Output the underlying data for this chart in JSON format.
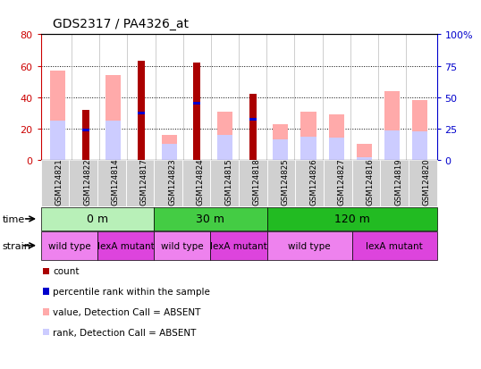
{
  "title": "GDS2317 / PA4326_at",
  "samples": [
    "GSM124821",
    "GSM124822",
    "GSM124814",
    "GSM124817",
    "GSM124823",
    "GSM124824",
    "GSM124815",
    "GSM124818",
    "GSM124825",
    "GSM124826",
    "GSM124827",
    "GSM124816",
    "GSM124819",
    "GSM124820"
  ],
  "count_values": [
    0,
    32,
    0,
    63,
    0,
    62,
    0,
    42,
    0,
    0,
    0,
    0,
    0,
    0
  ],
  "percentile_rank": [
    0,
    19,
    0,
    30,
    0,
    36,
    0,
    26,
    0,
    0,
    0,
    0,
    0,
    0
  ],
  "pink_bar_values": [
    57,
    0,
    54,
    0,
    16,
    0,
    31,
    0,
    23,
    31,
    29,
    10,
    44,
    38
  ],
  "light_blue_bar_values": [
    25,
    0,
    25,
    0,
    10,
    0,
    16,
    0,
    13,
    15,
    14,
    2,
    19,
    18
  ],
  "has_count": [
    false,
    true,
    false,
    true,
    false,
    true,
    false,
    true,
    false,
    false,
    false,
    false,
    false,
    false
  ],
  "ylim_left": [
    0,
    80
  ],
  "ylim_right": [
    0,
    100
  ],
  "yticks_left": [
    0,
    20,
    40,
    60,
    80
  ],
  "yticks_right": [
    0,
    25,
    50,
    75,
    100
  ],
  "ytick_labels_right": [
    "0",
    "25",
    "50",
    "75",
    "100%"
  ],
  "left_axis_color": "#cc0000",
  "right_axis_color": "#0000cc",
  "time_groups": [
    {
      "label": "0 m",
      "start": 0,
      "end": 4,
      "color": "#b8f0b8"
    },
    {
      "label": "30 m",
      "start": 4,
      "end": 8,
      "color": "#44cc44"
    },
    {
      "label": "120 m",
      "start": 8,
      "end": 14,
      "color": "#22bb22"
    }
  ],
  "strain_groups": [
    {
      "label": "wild type",
      "start": 0,
      "end": 2,
      "color": "#ee82ee"
    },
    {
      "label": "lexA mutant",
      "start": 2,
      "end": 4,
      "color": "#dd44dd"
    },
    {
      "label": "wild type",
      "start": 4,
      "end": 6,
      "color": "#ee82ee"
    },
    {
      "label": "lexA mutant",
      "start": 6,
      "end": 8,
      "color": "#dd44dd"
    },
    {
      "label": "wild type",
      "start": 8,
      "end": 11,
      "color": "#ee82ee"
    },
    {
      "label": "lexA mutant",
      "start": 11,
      "end": 14,
      "color": "#dd44dd"
    }
  ],
  "count_color": "#aa0000",
  "rank_color": "#0000cc",
  "pink_color": "#ffaaaa",
  "light_blue_color": "#ccccff",
  "bar_width": 0.55,
  "thin_bar_width": 0.25,
  "background_color": "#ffffff",
  "grid_color": "#000000",
  "legend_items": [
    {
      "color": "#aa0000",
      "label": "count"
    },
    {
      "color": "#0000cc",
      "label": "percentile rank within the sample"
    },
    {
      "color": "#ffaaaa",
      "label": "value, Detection Call = ABSENT"
    },
    {
      "color": "#ccccff",
      "label": "rank, Detection Call = ABSENT"
    }
  ]
}
